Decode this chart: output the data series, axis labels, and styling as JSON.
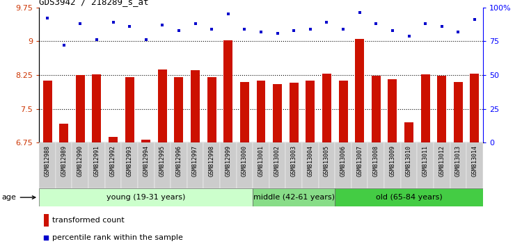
{
  "title": "GDS3942 / 218289_s_at",
  "samples": [
    "GSM812988",
    "GSM812989",
    "GSM812990",
    "GSM812991",
    "GSM812992",
    "GSM812993",
    "GSM812994",
    "GSM812995",
    "GSM812996",
    "GSM812997",
    "GSM812998",
    "GSM812999",
    "GSM813000",
    "GSM813001",
    "GSM813002",
    "GSM813003",
    "GSM813004",
    "GSM813005",
    "GSM813006",
    "GSM813007",
    "GSM813008",
    "GSM813009",
    "GSM813010",
    "GSM813011",
    "GSM813012",
    "GSM813013",
    "GSM813014"
  ],
  "bar_values": [
    8.13,
    7.17,
    8.25,
    8.27,
    6.88,
    8.2,
    6.82,
    8.38,
    8.2,
    8.35,
    8.2,
    9.02,
    8.1,
    8.12,
    8.05,
    8.08,
    8.13,
    8.28,
    8.12,
    9.05,
    8.23,
    8.15,
    7.2,
    8.27,
    8.23,
    8.1,
    8.28
  ],
  "dot_values": [
    92,
    72,
    88,
    76,
    89,
    86,
    76,
    87,
    83,
    88,
    84,
    95,
    84,
    82,
    81,
    83,
    84,
    89,
    84,
    96,
    88,
    83,
    79,
    88,
    86,
    82,
    91
  ],
  "bar_color": "#cc1100",
  "dot_color": "#0000cc",
  "ylim_left": [
    6.75,
    9.75
  ],
  "ylim_right": [
    0,
    100
  ],
  "yticks_left": [
    6.75,
    7.5,
    8.25,
    9.0,
    9.75
  ],
  "yticks_right": [
    0,
    25,
    50,
    75,
    100
  ],
  "ytick_labels_left": [
    "6.75",
    "7.5",
    "8.25",
    "9",
    "9.75"
  ],
  "ytick_labels_right": [
    "0",
    "25",
    "50",
    "75",
    "100%"
  ],
  "hlines": [
    9.0,
    8.25,
    7.5
  ],
  "groups": [
    {
      "label": "young (19-31 years)",
      "start": 0,
      "end": 13,
      "color": "#ccffcc"
    },
    {
      "label": "middle (42-61 years)",
      "start": 13,
      "end": 18,
      "color": "#88dd88"
    },
    {
      "label": "old (65-84 years)",
      "start": 18,
      "end": 27,
      "color": "#44cc44"
    }
  ],
  "age_label": "age",
  "legend_bar_label": "transformed count",
  "legend_dot_label": "percentile rank within the sample",
  "plot_bg_color": "#ffffff",
  "xtick_bg_color": "#cccccc",
  "title_fontsize": 9,
  "axis_fontsize": 8,
  "xtick_fontsize": 6,
  "group_fontsize": 8,
  "legend_fontsize": 8
}
